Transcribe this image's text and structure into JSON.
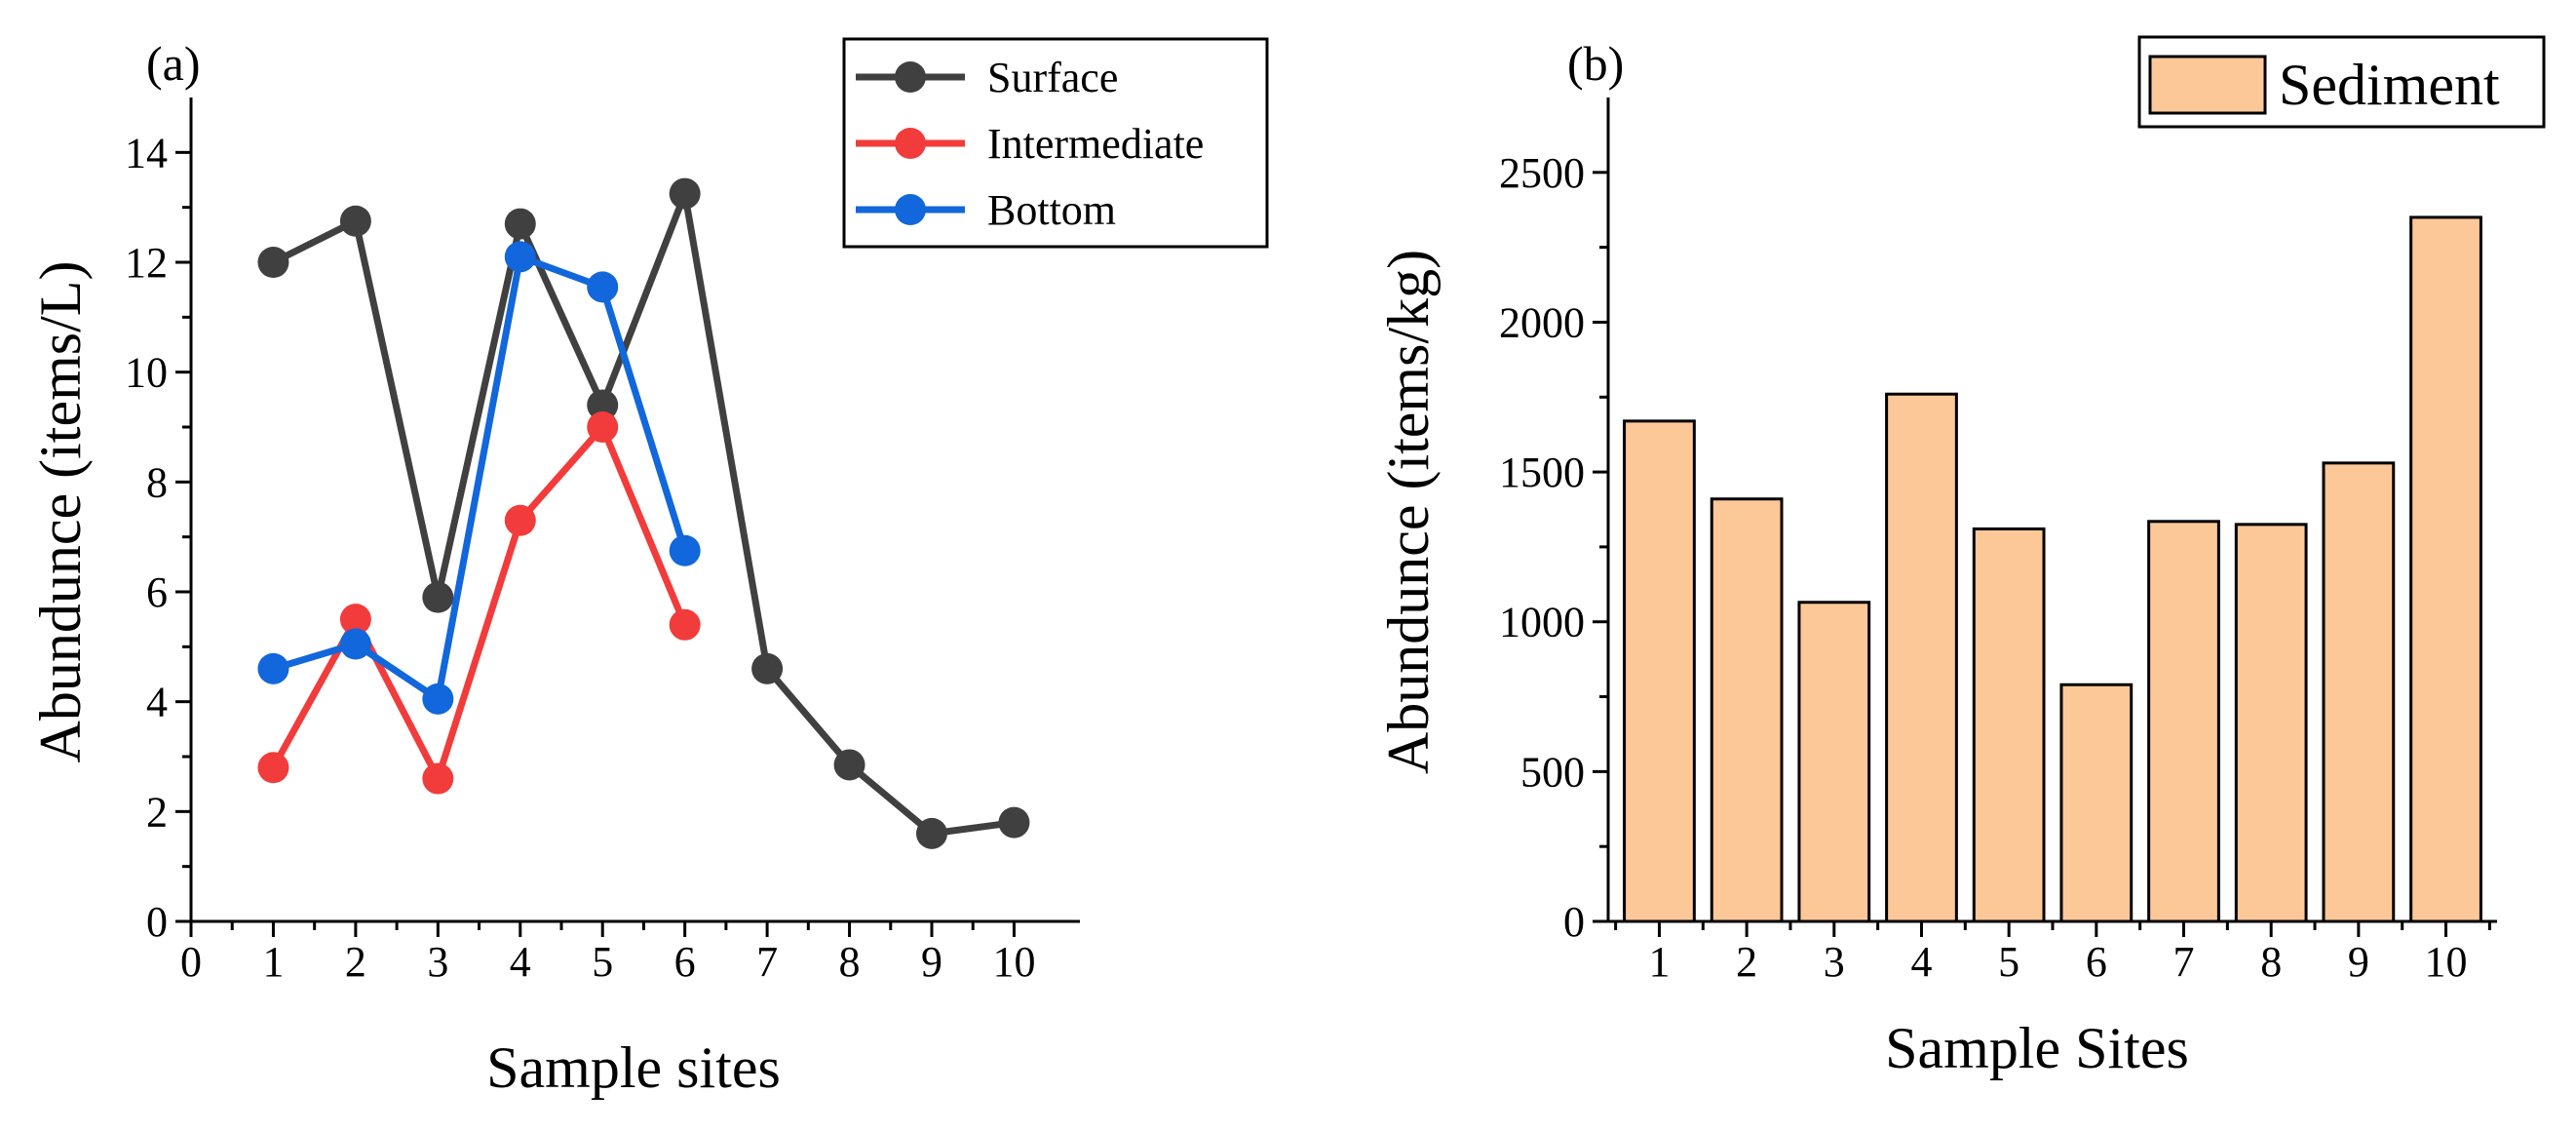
{
  "chart_data": [
    {
      "type": "line",
      "panel_label": "(a)",
      "xlabel": "Sample sites",
      "ylabel": "Abundunce (items/L)",
      "xlim": [
        0,
        10.8
      ],
      "ylim": [
        0,
        15
      ],
      "x_ticks": [
        0,
        1,
        2,
        3,
        4,
        5,
        6,
        7,
        8,
        9,
        10
      ],
      "y_ticks": [
        0,
        2,
        4,
        6,
        8,
        10,
        12,
        14
      ],
      "grid": false,
      "legend_position": "top-right",
      "series": [
        {
          "name": "Surface",
          "color": "#404040",
          "x": [
            1,
            2,
            3,
            4,
            5,
            6,
            7,
            8,
            9,
            10
          ],
          "y": [
            12.0,
            12.75,
            5.9,
            12.7,
            9.4,
            13.25,
            4.6,
            2.85,
            1.6,
            1.8
          ]
        },
        {
          "name": "Intermediate",
          "color": "#f23b3b",
          "x": [
            1,
            2,
            3,
            4,
            5,
            6
          ],
          "y": [
            2.8,
            5.5,
            2.6,
            7.3,
            9.0,
            5.4
          ]
        },
        {
          "name": "Bottom",
          "color": "#1167db",
          "x": [
            1,
            2,
            3,
            4,
            5,
            6
          ],
          "y": [
            4.6,
            5.05,
            4.05,
            12.1,
            11.55,
            6.75
          ]
        }
      ]
    },
    {
      "type": "bar",
      "panel_label": "(b)",
      "xlabel": "Sample Sites",
      "ylabel": "Abundunce (items/kg)",
      "ylim": [
        0,
        2750
      ],
      "y_ticks": [
        0,
        500,
        1000,
        1500,
        2000,
        2500
      ],
      "grid": false,
      "legend_position": "top-right",
      "bar_color": "#fdc898",
      "categories": [
        "1",
        "2",
        "3",
        "4",
        "5",
        "6",
        "7",
        "8",
        "9",
        "10"
      ],
      "series": [
        {
          "name": "Sediment",
          "values": [
            1670,
            1410,
            1065,
            1760,
            1310,
            790,
            1335,
            1325,
            1530,
            2350
          ]
        }
      ]
    }
  ]
}
